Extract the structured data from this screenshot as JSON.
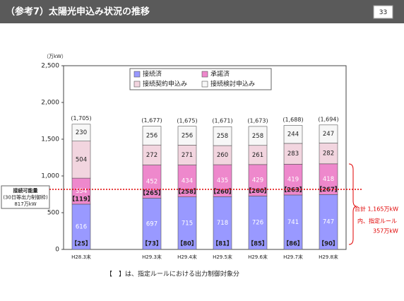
{
  "header": {
    "title": "（参考7）太陽光申込み状況の推移",
    "page": "33"
  },
  "chart_data": {
    "type": "stacked_bar",
    "ylabel": "（万kW）",
    "categories": [
      "H28.3末",
      null,
      "H29.3末",
      "H29.4末",
      "H29.5末",
      "H29.6末",
      "H29.7末",
      "H29.8末"
    ],
    "series": [
      {
        "name": "接続済",
        "color": "#9999ff",
        "values": [
          616,
          null,
          697,
          715,
          718,
          726,
          741,
          747
        ]
      },
      {
        "name": "承諾済",
        "color": "#ee88cc",
        "values": [
          354,
          null,
          452,
          434,
          435,
          429,
          419,
          418
        ]
      },
      {
        "name": "接続契約申込み",
        "color": "#f2d5df",
        "values": [
          504,
          null,
          272,
          271,
          260,
          261,
          283,
          282
        ]
      },
      {
        "name": "接続検討申込み",
        "color": "#f7f7f7",
        "values": [
          230,
          null,
          256,
          256,
          258,
          258,
          244,
          247
        ]
      }
    ],
    "totals": {
      "values": [
        1705,
        null,
        1677,
        1675,
        1671,
        1673,
        1688,
        1694
      ],
      "value_labels": [
        "(1,705)",
        null,
        "(1,677)",
        "(1,675)",
        "(1,671)",
        "(1,673)",
        "(1,688)",
        "(1,694)"
      ]
    },
    "controlled_connected": {
      "values": [
        25,
        null,
        73,
        80,
        81,
        85,
        86,
        90
      ],
      "value_labels": [
        "【25】",
        null,
        "【73】",
        "【80】",
        "【81】",
        "【85】",
        "【86】",
        "【90】"
      ]
    },
    "controlled_approved": {
      "values": [
        119,
        null,
        265,
        258,
        260,
        260,
        263,
        267
      ],
      "value_labels": [
        "【119】",
        null,
        "【265】",
        "【258】",
        "【260】",
        "【260】",
        "【263】",
        "【267】"
      ]
    },
    "ylim": [
      0,
      2500
    ],
    "yticks": [
      0,
      500,
      {
        "value": 1000,
        "label": "1,000"
      },
      {
        "value": 1500,
        "label": "1,500"
      },
      {
        "value": 2000,
        "label": "2,000"
      },
      {
        "value": 2500,
        "label": "2,500"
      }
    ],
    "reference_line": {
      "value": 817,
      "color": "#e00000",
      "label": [
        "接続可能量",
        "(30日等出力制御枠)",
        "817万kW"
      ]
    },
    "right_note": [
      "合計 1,165万kW",
      "内、指定ルール",
      "357万kW"
    ],
    "footnote": "【　】は、指定ルールにおける出力制御対象分"
  }
}
